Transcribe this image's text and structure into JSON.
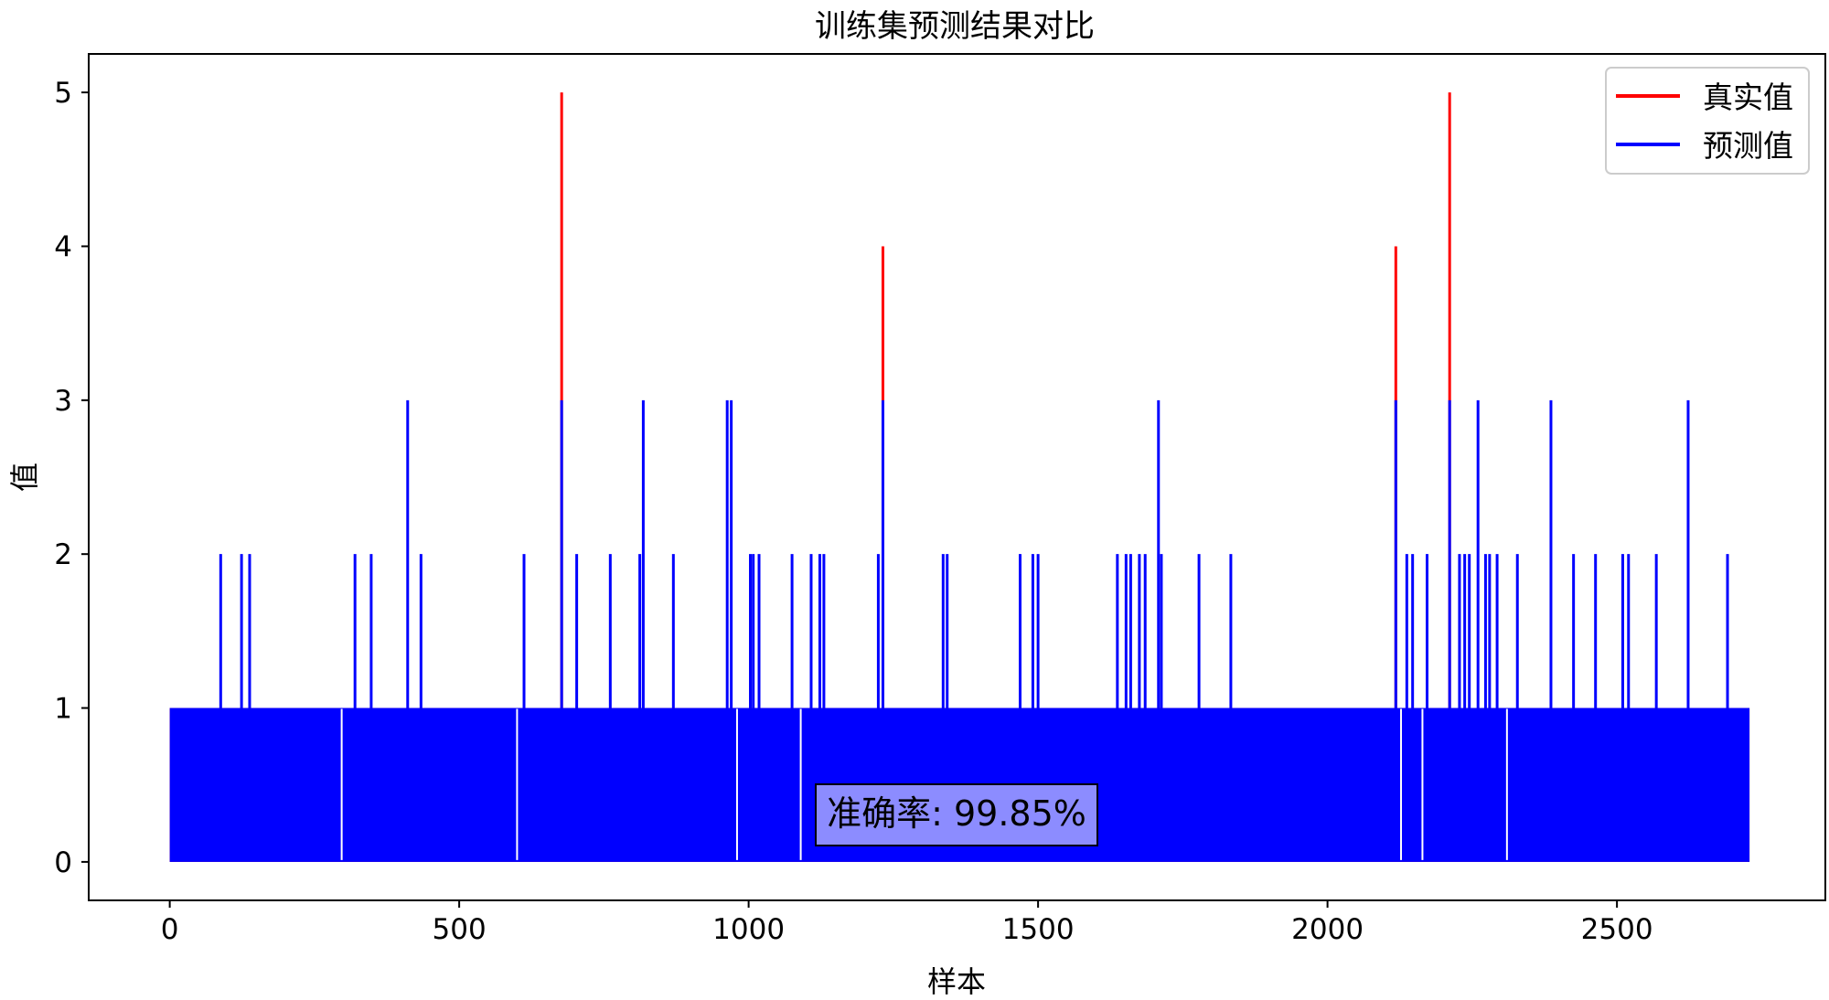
{
  "chart_data": {
    "type": "line",
    "title": "训练集预测结果对比",
    "xlabel": "样本",
    "ylabel": "值",
    "xlim": [
      -140,
      2860
    ],
    "ylim": [
      -0.25,
      5.25
    ],
    "x_ticks": [
      0,
      500,
      1000,
      1500,
      2000,
      2500
    ],
    "x_tick_labels": [
      "0",
      "500",
      "1000",
      "1500",
      "2000",
      "2500"
    ],
    "y_ticks": [
      0,
      1,
      2,
      3,
      4,
      5
    ],
    "y_tick_labels": [
      "0",
      "1",
      "2",
      "3",
      "4",
      "5"
    ],
    "grid": false,
    "legend_position": "top-right",
    "n_samples": 2730,
    "annotation": "准确率: 99.85%",
    "series": [
      {
        "name": "真实值",
        "color": "#ff0000",
        "baseline_pattern": "alternating 0/1",
        "spikes": [
          {
            "x": 677,
            "y": 5
          },
          {
            "x": 1232,
            "y": 4
          },
          {
            "x": 2118,
            "y": 4
          },
          {
            "x": 2211,
            "y": 5
          }
        ]
      },
      {
        "name": "预测值",
        "color": "#0000ff",
        "baseline_pattern": "alternating 0/1",
        "spikes": [
          {
            "x": 88,
            "y": 2
          },
          {
            "x": 124,
            "y": 2
          },
          {
            "x": 138,
            "y": 2
          },
          {
            "x": 320,
            "y": 2
          },
          {
            "x": 348,
            "y": 2
          },
          {
            "x": 411,
            "y": 3
          },
          {
            "x": 434,
            "y": 2
          },
          {
            "x": 612,
            "y": 2
          },
          {
            "x": 677,
            "y": 3
          },
          {
            "x": 703,
            "y": 2
          },
          {
            "x": 761,
            "y": 2
          },
          {
            "x": 812,
            "y": 2
          },
          {
            "x": 818,
            "y": 3
          },
          {
            "x": 870,
            "y": 2
          },
          {
            "x": 963,
            "y": 3
          },
          {
            "x": 970,
            "y": 3
          },
          {
            "x": 1003,
            "y": 2
          },
          {
            "x": 1008,
            "y": 2
          },
          {
            "x": 1018,
            "y": 2
          },
          {
            "x": 1075,
            "y": 2
          },
          {
            "x": 1108,
            "y": 2
          },
          {
            "x": 1123,
            "y": 2
          },
          {
            "x": 1130,
            "y": 2
          },
          {
            "x": 1224,
            "y": 2
          },
          {
            "x": 1232,
            "y": 3
          },
          {
            "x": 1336,
            "y": 2
          },
          {
            "x": 1343,
            "y": 2
          },
          {
            "x": 1469,
            "y": 2
          },
          {
            "x": 1491,
            "y": 2
          },
          {
            "x": 1500,
            "y": 2
          },
          {
            "x": 1637,
            "y": 2
          },
          {
            "x": 1652,
            "y": 2
          },
          {
            "x": 1660,
            "y": 2
          },
          {
            "x": 1675,
            "y": 2
          },
          {
            "x": 1685,
            "y": 2
          },
          {
            "x": 1708,
            "y": 3
          },
          {
            "x": 1713,
            "y": 2
          },
          {
            "x": 1778,
            "y": 2
          },
          {
            "x": 1833,
            "y": 2
          },
          {
            "x": 2118,
            "y": 3
          },
          {
            "x": 2137,
            "y": 2
          },
          {
            "x": 2147,
            "y": 2
          },
          {
            "x": 2172,
            "y": 2
          },
          {
            "x": 2211,
            "y": 3
          },
          {
            "x": 2228,
            "y": 2
          },
          {
            "x": 2237,
            "y": 2
          },
          {
            "x": 2245,
            "y": 2
          },
          {
            "x": 2260,
            "y": 3
          },
          {
            "x": 2273,
            "y": 2
          },
          {
            "x": 2280,
            "y": 2
          },
          {
            "x": 2293,
            "y": 2
          },
          {
            "x": 2328,
            "y": 2
          },
          {
            "x": 2386,
            "y": 3
          },
          {
            "x": 2425,
            "y": 2
          },
          {
            "x": 2463,
            "y": 2
          },
          {
            "x": 2510,
            "y": 2
          },
          {
            "x": 2520,
            "y": 2
          },
          {
            "x": 2568,
            "y": 2
          },
          {
            "x": 2623,
            "y": 3
          },
          {
            "x": 2691,
            "y": 2
          }
        ],
        "zero_gaps": [
          297,
          600,
          980,
          1090,
          2127,
          2164,
          2310
        ]
      }
    ]
  }
}
